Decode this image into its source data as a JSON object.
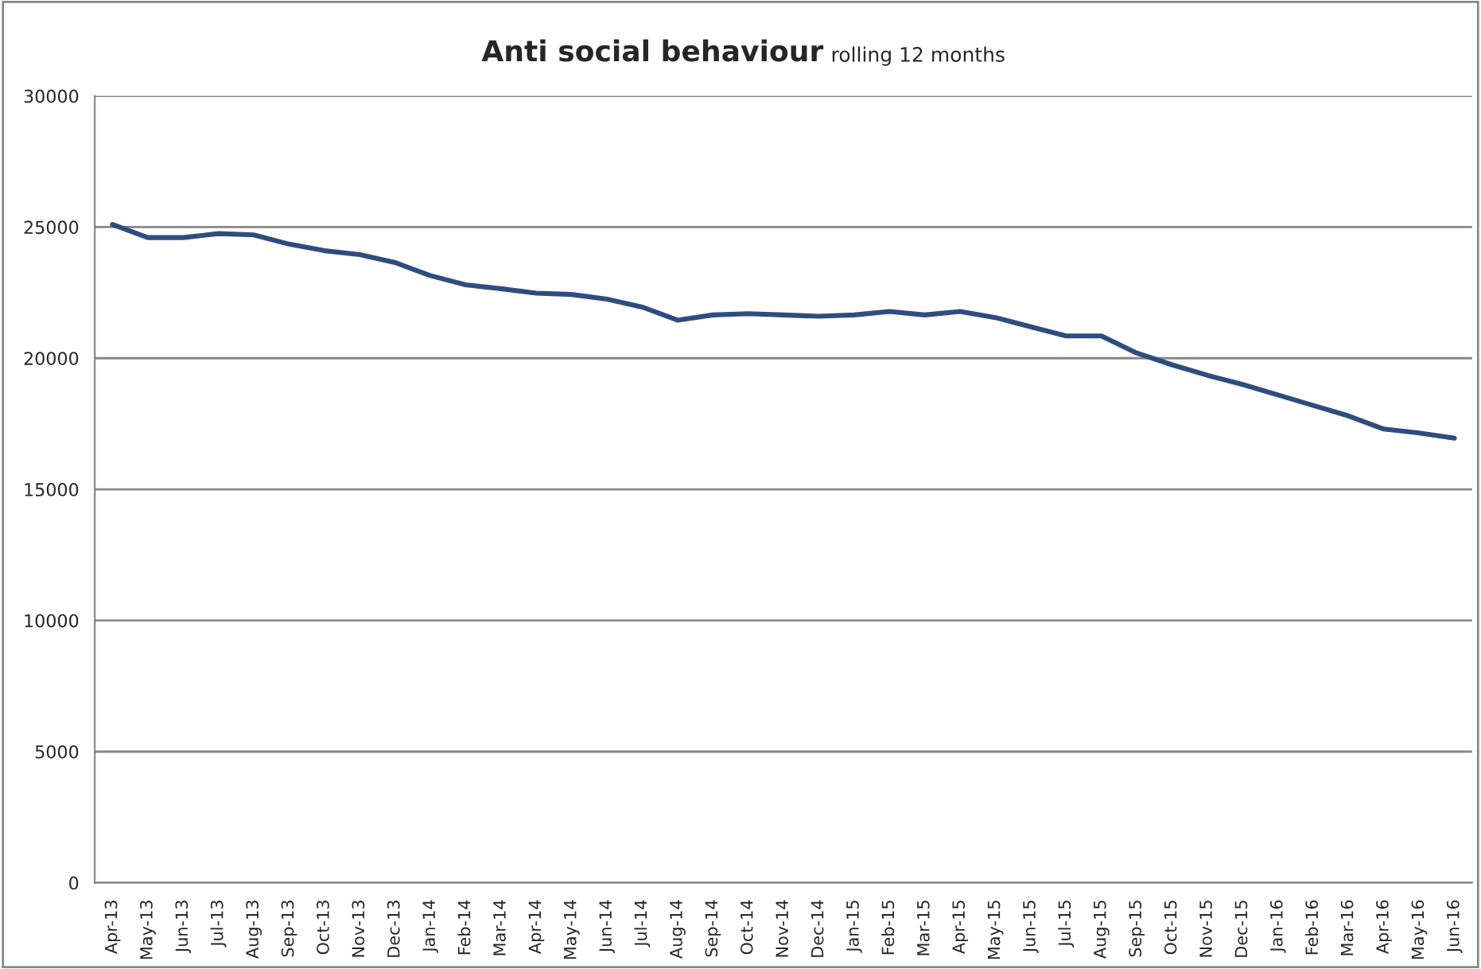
{
  "chart_data": {
    "type": "line",
    "title": "Anti social behaviour",
    "subtitle": "rolling 12 months",
    "categories": [
      "Apr-13",
      "May-13",
      "Jun-13",
      "Jul-13",
      "Aug-13",
      "Sep-13",
      "Oct-13",
      "Nov-13",
      "Dec-13",
      "Jan-14",
      "Feb-14",
      "Mar-14",
      "Apr-14",
      "May-14",
      "Jun-14",
      "Jul-14",
      "Aug-14",
      "Sep-14",
      "Oct-14",
      "Nov-14",
      "Dec-14",
      "Jan-15",
      "Feb-15",
      "Mar-15",
      "Apr-15",
      "May-15",
      "Jun-15",
      "Jul-15",
      "Aug-15",
      "Sep-15",
      "Oct-15",
      "Nov-15",
      "Dec-15",
      "Jan-16",
      "Feb-16",
      "Mar-16",
      "Apr-16",
      "May-16",
      "Jun-16"
    ],
    "series": [
      {
        "color": "#2e4d7f",
        "values": [
          25100,
          24600,
          24600,
          24750,
          24700,
          24350,
          24100,
          23950,
          23650,
          23150,
          22800,
          22650,
          22480,
          22430,
          22250,
          21950,
          21450,
          21650,
          21700,
          21650,
          21600,
          21650,
          21780,
          21650,
          21780,
          21550,
          21200,
          20850,
          20850,
          20200,
          19750,
          19350,
          19000,
          18600,
          18200,
          17800,
          17300,
          17150,
          16950
        ]
      }
    ],
    "ylim": [
      0,
      30000
    ],
    "yticks": [
      0,
      5000,
      10000,
      15000,
      20000,
      25000,
      30000
    ],
    "grid": "y",
    "marker": "none",
    "line_style": "solid"
  }
}
